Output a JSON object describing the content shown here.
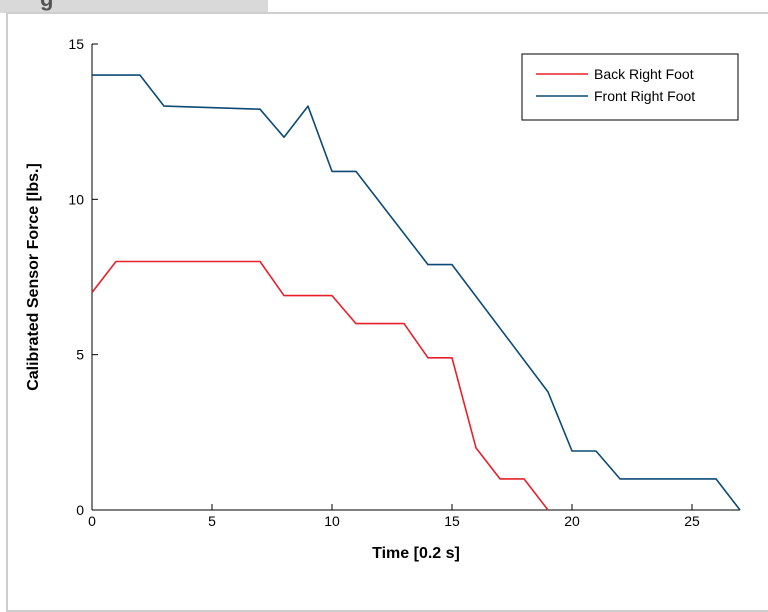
{
  "header": {
    "tab_label": "g"
  },
  "chart_data": {
    "type": "line",
    "title": "",
    "xlabel": "Time [0.2 s]",
    "ylabel": "Calibrated Sensor Force [lbs.]",
    "xlim": [
      0,
      27
    ],
    "ylim": [
      0,
      15
    ],
    "xticks": [
      0,
      5,
      10,
      15,
      20,
      25
    ],
    "yticks": [
      0,
      5,
      10,
      15
    ],
    "legend_position": "top-right",
    "grid": false,
    "series": [
      {
        "name": "Back Right Foot",
        "color": "#e8202a",
        "x": [
          0,
          1,
          7,
          8,
          10,
          11,
          13,
          14,
          15,
          16,
          17,
          18,
          19
        ],
        "y": [
          7,
          8,
          8,
          6.9,
          6.9,
          6,
          6,
          4.9,
          4.9,
          2,
          1,
          1,
          0
        ]
      },
      {
        "name": "Front Right Foot",
        "color": "#0b4a75",
        "x": [
          0,
          2,
          3,
          7,
          8,
          9,
          10,
          11,
          14,
          15,
          19,
          20,
          21,
          22,
          26,
          27
        ],
        "y": [
          14,
          14,
          13,
          12.9,
          12,
          13,
          10.9,
          10.9,
          7.9,
          7.9,
          3.8,
          1.9,
          1.9,
          1,
          1,
          0
        ]
      }
    ]
  }
}
